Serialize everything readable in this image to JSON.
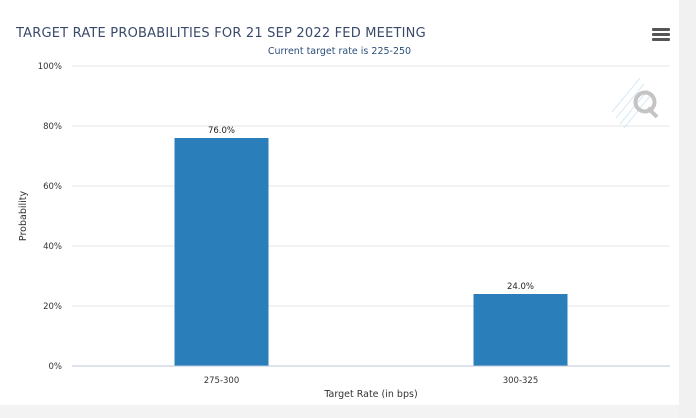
{
  "header": {
    "menu_icon": "hamburger-menu-icon"
  },
  "watermark": {
    "icon": "q-logo-icon"
  },
  "colors": {
    "bar": "#2a7fbb",
    "grid": "#e6e6e6",
    "title": "#3a4a6b",
    "subtitle": "#2b4f7a"
  },
  "chart_data": {
    "type": "bar",
    "title": "TARGET RATE PROBABILITIES FOR 21 SEP 2022 FED MEETING",
    "subtitle": "Current target rate is 225-250",
    "categories": [
      "275-300",
      "300-325"
    ],
    "values": [
      76.0,
      24.0
    ],
    "data_labels": [
      "76.0%",
      "24.0%"
    ],
    "xlabel": "Target Rate (in bps)",
    "ylabel": "Probability",
    "ylim": [
      0,
      100
    ],
    "yticks": [
      "0%",
      "20%",
      "40%",
      "60%",
      "80%",
      "100%"
    ],
    "grid": true,
    "legend": "none"
  }
}
